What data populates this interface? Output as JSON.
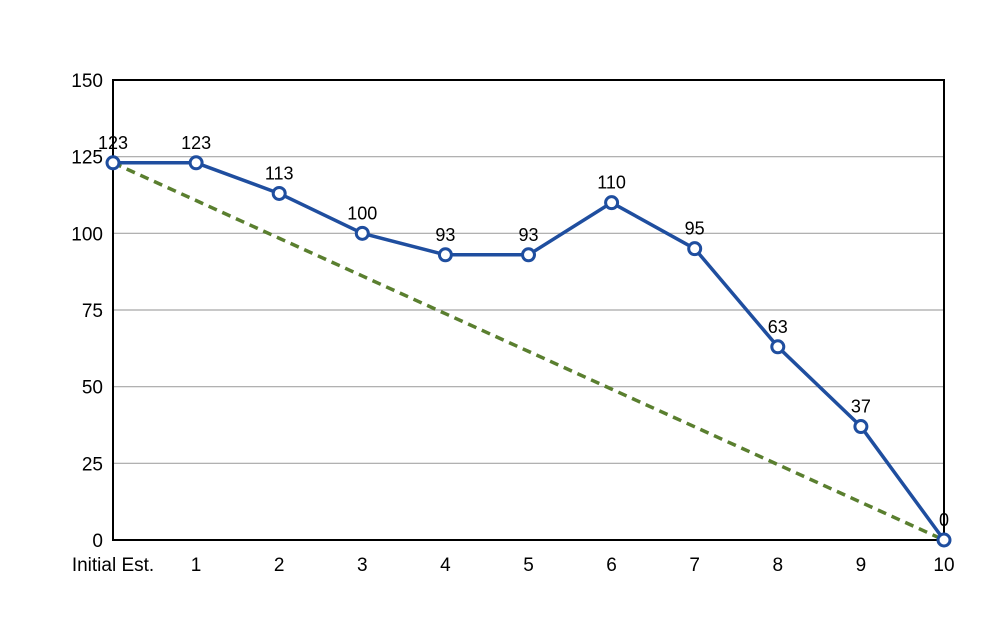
{
  "chart_data": {
    "type": "line",
    "title": "",
    "xlabel": "",
    "ylabel": "",
    "categories": [
      "Initial Est.",
      "1",
      "2",
      "3",
      "4",
      "5",
      "6",
      "7",
      "8",
      "9",
      "10"
    ],
    "ylim": [
      0,
      150
    ],
    "yticks": [
      "0",
      "25",
      "50",
      "75",
      "100",
      "125",
      "150"
    ],
    "grid": true,
    "legend": "none",
    "series": [
      {
        "values": [
          123,
          123,
          113,
          100,
          93,
          93,
          110,
          95,
          63,
          37,
          0
        ],
        "labels": [
          "123",
          "123",
          "113",
          "100",
          "93",
          "93",
          "110",
          "95",
          "63",
          "37",
          "0"
        ],
        "style": "solid",
        "markers": "open-circle",
        "color": "#1f4e9f"
      },
      {
        "values": [
          123,
          110.7,
          98.4,
          86.1,
          73.8,
          61.5,
          49.2,
          36.9,
          24.6,
          12.3,
          0
        ],
        "style": "dashed",
        "markers": "none",
        "color": "#5a7f2f"
      }
    ],
    "colors": {
      "grid": "#a6a6a6",
      "axis": "#000000",
      "actual": "#1f4e9f",
      "ideal": "#5a7f2f"
    }
  }
}
